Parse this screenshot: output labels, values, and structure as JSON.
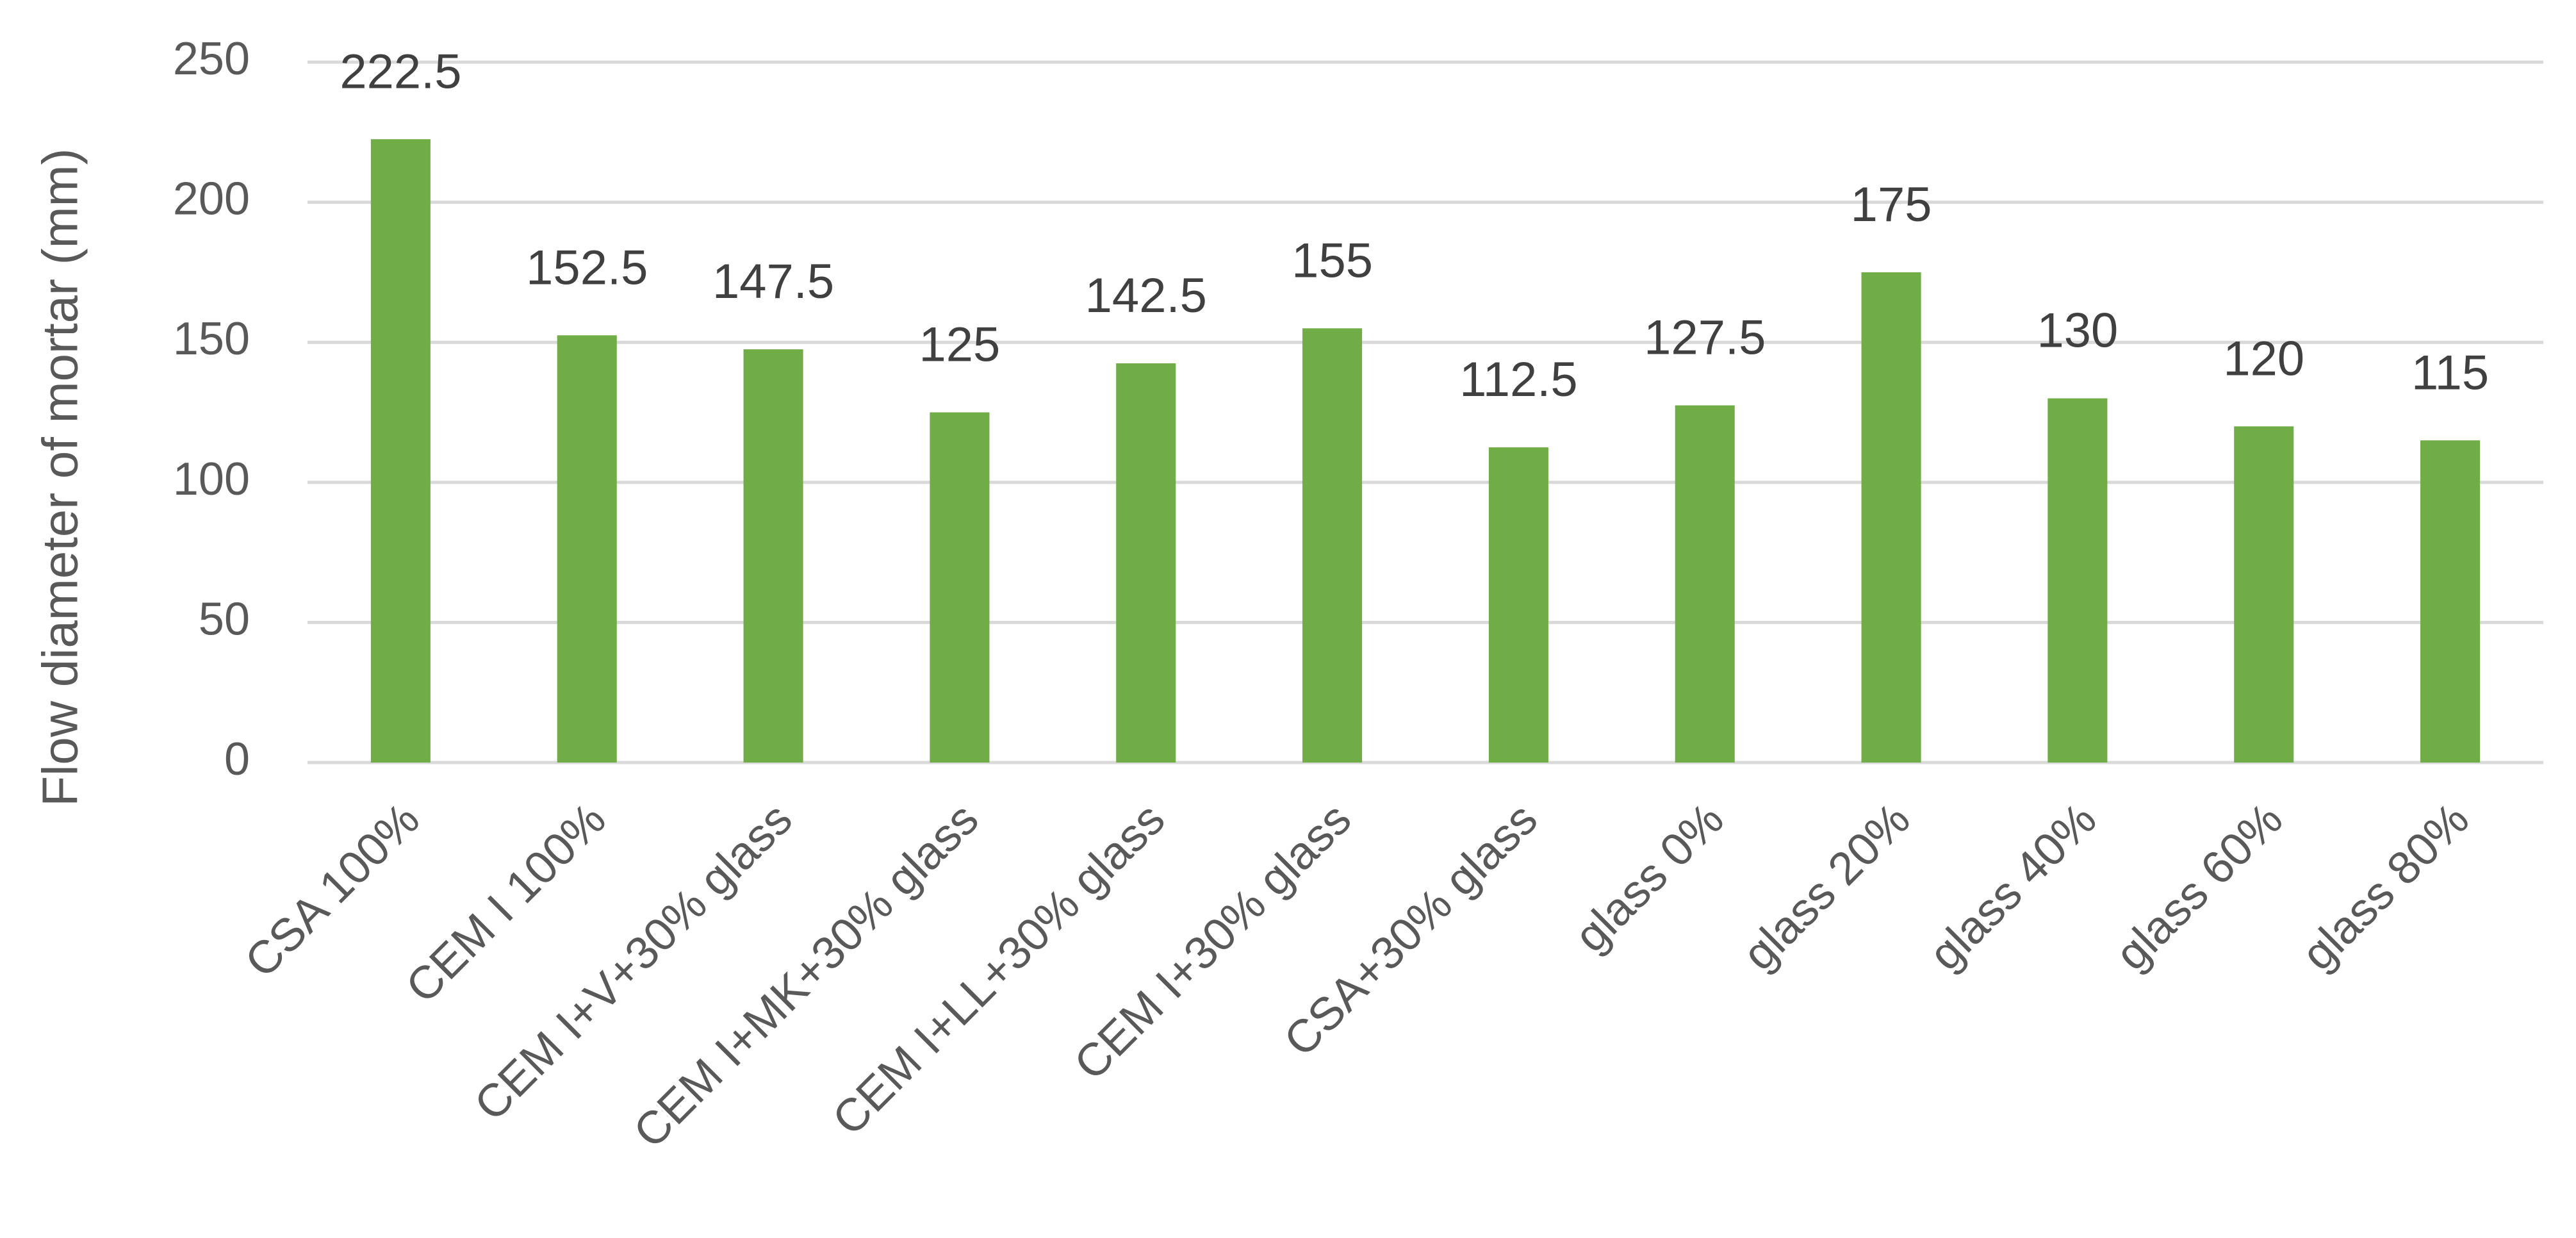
{
  "chart_data": {
    "type": "bar",
    "y_label": "Flow diameter of mortar  (mm)",
    "categories": [
      "CSA 100%",
      "CEM I 100%",
      "CEM I+V+30% glass",
      "CEM I+MK+30% glass",
      "CEM I+LL+30% glass",
      "CEM I+30% glass",
      "CSA+30% glass",
      "glass 0%",
      "glass 20%",
      "glass 40%",
      "glass 60%",
      "glass 80%"
    ],
    "values": [
      222.5,
      152.5,
      147.5,
      125,
      142.5,
      155,
      112.5,
      127.5,
      175,
      130,
      120,
      115
    ],
    "color": "#70ad47",
    "ylim": [
      0,
      250
    ],
    "yticks": [
      0,
      50,
      100,
      150,
      200,
      250
    ],
    "grid": true
  }
}
